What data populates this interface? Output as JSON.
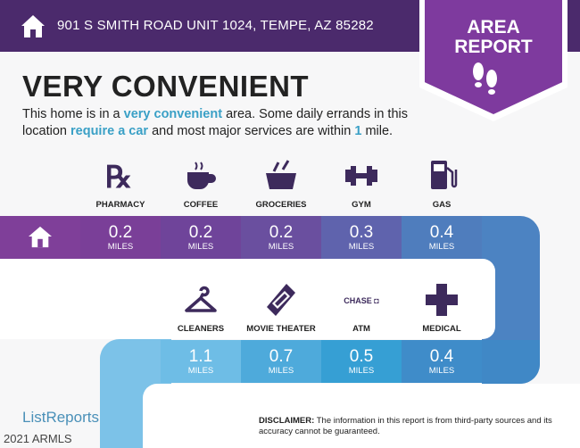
{
  "header": {
    "address": "901 S SMITH ROAD UNIT 1024, TEMPE, AZ 85282",
    "badge_line1": "AREA",
    "badge_line2": "REPORT"
  },
  "title": "VERY CONVENIENT",
  "description": {
    "p1": "This home is in a ",
    "h1": "very convenient",
    "p2": " area. Some daily errands in this location ",
    "h2": "require a car",
    "p3": " and most major services are within ",
    "h3": "1",
    "p4": " mile."
  },
  "unit": "MILES",
  "row1": [
    {
      "label": "PHARMACY",
      "value": "0.2",
      "icon": "rx-icon",
      "color": "#7a3f98"
    },
    {
      "label": "COFFEE",
      "value": "0.2",
      "icon": "coffee-cup-icon",
      "color": "#6f449a"
    },
    {
      "label": "GROCERIES",
      "value": "0.2",
      "icon": "grocery-basket-icon",
      "color": "#6a4f9f"
    },
    {
      "label": "GYM",
      "value": "0.3",
      "icon": "dumbbell-icon",
      "color": "#5f63ad"
    },
    {
      "label": "GAS",
      "value": "0.4",
      "icon": "gas-pump-icon",
      "color": "#4f7dbd"
    }
  ],
  "row2": [
    {
      "label": "CLEANERS",
      "value": "1.1",
      "icon": "hanger-icon",
      "color": "#6ebde6"
    },
    {
      "label": "MOVIE THEATER",
      "value": "0.7",
      "icon": "ticket-icon",
      "color": "#4eaadb"
    },
    {
      "label": "ATM",
      "value": "0.5",
      "icon": "chase-logo",
      "icon_text": "CHASE",
      "color": "#369fd4"
    },
    {
      "label": "MEDICAL",
      "value": "0.4",
      "icon": "medical-cross-icon",
      "color": "#3f8cc9"
    }
  ],
  "colors": {
    "home_cell": "#7f3f99",
    "band": "#4c83c2",
    "left_band": "#7cc2e8"
  },
  "footer": {
    "logo": "ListReports",
    "copyright": "2021 ARMLS",
    "disclaimer_label": "DISCLAIMER:",
    "disclaimer_text": " The information in this report is from third-party sources and its accuracy cannot be guaranteed."
  }
}
